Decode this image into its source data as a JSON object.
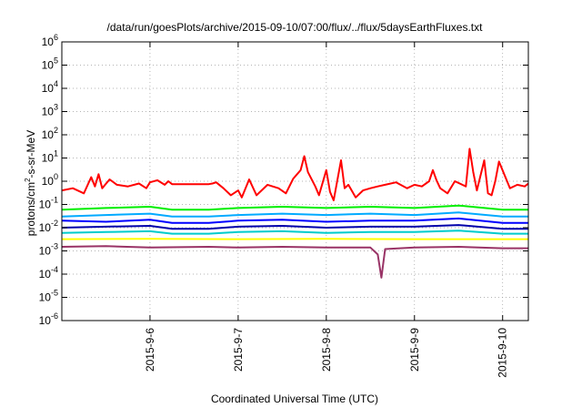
{
  "chart_data": {
    "type": "line",
    "title": "/data/run/goesPlots/archive/2015-09-10/07:00/flux/../flux/5daysEarthFluxes.txt",
    "xlabel": "Coordinated Universal Time (UTC)",
    "ylabel_parts": {
      "pre": "protons/cm",
      "sup": "2",
      "post": "-s-sr-MeV"
    },
    "yscale": "log",
    "ylim": [
      1e-06,
      1000000.0
    ],
    "xlim": [
      "2015-09-05 00:00",
      "2015-09-10 07:00"
    ],
    "grid": true,
    "legend": "none",
    "y_ticks": [
      {
        "value": 1e-06,
        "base": "10",
        "exp": "-6"
      },
      {
        "value": 1e-05,
        "base": "10",
        "exp": "-5"
      },
      {
        "value": 0.0001,
        "base": "10",
        "exp": "-4"
      },
      {
        "value": 0.001,
        "base": "10",
        "exp": "-3"
      },
      {
        "value": 0.01,
        "base": "10",
        "exp": "-2"
      },
      {
        "value": 0.1,
        "base": "10",
        "exp": "-1"
      },
      {
        "value": 1,
        "base": "10",
        "exp": "0"
      },
      {
        "value": 10.0,
        "base": "10",
        "exp": "1"
      },
      {
        "value": 100.0,
        "base": "10",
        "exp": "2"
      },
      {
        "value": 1000.0,
        "base": "10",
        "exp": "3"
      },
      {
        "value": 10000.0,
        "base": "10",
        "exp": "4"
      },
      {
        "value": 100000.0,
        "base": "10",
        "exp": "5"
      },
      {
        "value": 1000000.0,
        "base": "10",
        "exp": "6"
      }
    ],
    "x_ticks": [
      {
        "value": "2015-09-06",
        "label": "2015-9-6"
      },
      {
        "value": "2015-09-07",
        "label": "2015-9-7"
      },
      {
        "value": "2015-09-08",
        "label": "2015-9-8"
      },
      {
        "value": "2015-09-09",
        "label": "2015-9-9"
      },
      {
        "value": "2015-09-10",
        "label": "2015-9-10"
      }
    ],
    "series": [
      {
        "color": "#ff0000",
        "points": [
          [
            "2015-09-05 00:00",
            0.4
          ],
          [
            "2015-09-05 03:00",
            0.5
          ],
          [
            "2015-09-05 06:00",
            0.3
          ],
          [
            "2015-09-05 08:00",
            1.5
          ],
          [
            "2015-09-05 09:00",
            0.6
          ],
          [
            "2015-09-05 10:00",
            2.0
          ],
          [
            "2015-09-05 11:00",
            0.5
          ],
          [
            "2015-09-05 13:00",
            1.2
          ],
          [
            "2015-09-05 15:00",
            0.7
          ],
          [
            "2015-09-05 18:00",
            0.6
          ],
          [
            "2015-09-05 21:00",
            0.8
          ],
          [
            "2015-09-05 23:00",
            0.5
          ],
          [
            "2015-09-06 00:00",
            0.9
          ],
          [
            "2015-09-06 02:00",
            1.1
          ],
          [
            "2015-09-06 04:00",
            0.7
          ],
          [
            "2015-09-06 05:00",
            1.0
          ],
          [
            "2015-09-06 06:00",
            0.75
          ],
          [
            "2015-09-06 16:00",
            0.75
          ],
          [
            "2015-09-06 17:00",
            0.8
          ],
          [
            "2015-09-06 18:00",
            0.9
          ],
          [
            "2015-09-06 20:00",
            0.5
          ],
          [
            "2015-09-06 22:00",
            0.25
          ],
          [
            "2015-09-07 00:00",
            0.4
          ],
          [
            "2015-09-07 01:00",
            0.2
          ],
          [
            "2015-09-07 03:00",
            1.2
          ],
          [
            "2015-09-07 05:00",
            0.25
          ],
          [
            "2015-09-07 08:00",
            0.7
          ],
          [
            "2015-09-07 11:00",
            0.5
          ],
          [
            "2015-09-07 13:00",
            0.3
          ],
          [
            "2015-09-07 15:00",
            1.3
          ],
          [
            "2015-09-07 17:00",
            3.0
          ],
          [
            "2015-09-07 18:00",
            12.0
          ],
          [
            "2015-09-07 19:00",
            2.5
          ],
          [
            "2015-09-07 21:00",
            0.6
          ],
          [
            "2015-09-07 22:00",
            0.25
          ],
          [
            "2015-09-08 00:00",
            3.0
          ],
          [
            "2015-09-08 01:00",
            0.35
          ],
          [
            "2015-09-08 02:00",
            0.15
          ],
          [
            "2015-09-08 04:00",
            8.0
          ],
          [
            "2015-09-08 05:00",
            0.5
          ],
          [
            "2015-09-08 06:00",
            0.7
          ],
          [
            "2015-09-08 08:00",
            0.2
          ],
          [
            "2015-09-08 10:00",
            0.4
          ],
          [
            "2015-09-08 12:00",
            0.5
          ],
          [
            "2015-09-08 14:00",
            0.6
          ],
          [
            "2015-09-08 16:00",
            0.7
          ],
          [
            "2015-09-08 19:00",
            0.9
          ],
          [
            "2015-09-08 22:00",
            0.5
          ],
          [
            "2015-09-09 00:00",
            0.7
          ],
          [
            "2015-09-09 02:00",
            0.6
          ],
          [
            "2015-09-09 04:00",
            1.0
          ],
          [
            "2015-09-09 05:00",
            3.0
          ],
          [
            "2015-09-09 06:00",
            1.1
          ],
          [
            "2015-09-09 07:00",
            0.5
          ],
          [
            "2015-09-09 09:00",
            0.3
          ],
          [
            "2015-09-09 11:00",
            1.0
          ],
          [
            "2015-09-09 14:00",
            0.6
          ],
          [
            "2015-09-09 15:00",
            25.0
          ],
          [
            "2015-09-09 16:00",
            2.5
          ],
          [
            "2015-09-09 17:00",
            0.4
          ],
          [
            "2015-09-09 19:00",
            8.0
          ],
          [
            "2015-09-09 20:00",
            0.3
          ],
          [
            "2015-09-09 21:00",
            0.25
          ],
          [
            "2015-09-09 22:00",
            1.0
          ],
          [
            "2015-09-09 23:00",
            7.0
          ],
          [
            "2015-09-10 01:00",
            1.2
          ],
          [
            "2015-09-10 02:00",
            0.5
          ],
          [
            "2015-09-10 04:00",
            0.7
          ],
          [
            "2015-09-10 06:00",
            0.6
          ],
          [
            "2015-09-10 07:00",
            0.8
          ]
        ]
      },
      {
        "color": "#00ee00",
        "points": [
          [
            "2015-09-05 00:00",
            0.06
          ],
          [
            "2015-09-05 12:00",
            0.07
          ],
          [
            "2015-09-06 00:00",
            0.08
          ],
          [
            "2015-09-06 06:00",
            0.06
          ],
          [
            "2015-09-06 16:00",
            0.06
          ],
          [
            "2015-09-07 00:00",
            0.07
          ],
          [
            "2015-09-07 12:00",
            0.08
          ],
          [
            "2015-09-08 00:00",
            0.07
          ],
          [
            "2015-09-08 12:00",
            0.08
          ],
          [
            "2015-09-09 00:00",
            0.07
          ],
          [
            "2015-09-09 12:00",
            0.09
          ],
          [
            "2015-09-10 00:00",
            0.06
          ],
          [
            "2015-09-10 07:00",
            0.06
          ]
        ]
      },
      {
        "color": "#00aaff",
        "points": [
          [
            "2015-09-05 00:00",
            0.03
          ],
          [
            "2015-09-05 12:00",
            0.035
          ],
          [
            "2015-09-06 00:00",
            0.04
          ],
          [
            "2015-09-06 06:00",
            0.03
          ],
          [
            "2015-09-06 16:00",
            0.03
          ],
          [
            "2015-09-07 00:00",
            0.035
          ],
          [
            "2015-09-07 12:00",
            0.04
          ],
          [
            "2015-09-08 00:00",
            0.035
          ],
          [
            "2015-09-08 12:00",
            0.04
          ],
          [
            "2015-09-09 00:00",
            0.035
          ],
          [
            "2015-09-09 12:00",
            0.045
          ],
          [
            "2015-09-10 00:00",
            0.03
          ],
          [
            "2015-09-10 07:00",
            0.03
          ]
        ]
      },
      {
        "color": "#0000ff",
        "points": [
          [
            "2015-09-05 00:00",
            0.02
          ],
          [
            "2015-09-05 12:00",
            0.018
          ],
          [
            "2015-09-06 00:00",
            0.022
          ],
          [
            "2015-09-06 06:00",
            0.016
          ],
          [
            "2015-09-06 16:00",
            0.016
          ],
          [
            "2015-09-07 00:00",
            0.02
          ],
          [
            "2015-09-07 12:00",
            0.022
          ],
          [
            "2015-09-08 00:00",
            0.018
          ],
          [
            "2015-09-08 12:00",
            0.02
          ],
          [
            "2015-09-09 00:00",
            0.02
          ],
          [
            "2015-09-09 12:00",
            0.025
          ],
          [
            "2015-09-10 00:00",
            0.016
          ],
          [
            "2015-09-10 07:00",
            0.016
          ]
        ]
      },
      {
        "color": "#0000aa",
        "points": [
          [
            "2015-09-05 00:00",
            0.01
          ],
          [
            "2015-09-05 12:00",
            0.011
          ],
          [
            "2015-09-06 00:00",
            0.012
          ],
          [
            "2015-09-06 06:00",
            0.009
          ],
          [
            "2015-09-06 16:00",
            0.009
          ],
          [
            "2015-09-07 00:00",
            0.011
          ],
          [
            "2015-09-07 12:00",
            0.012
          ],
          [
            "2015-09-08 00:00",
            0.01
          ],
          [
            "2015-09-08 12:00",
            0.011
          ],
          [
            "2015-09-09 00:00",
            0.011
          ],
          [
            "2015-09-09 12:00",
            0.013
          ],
          [
            "2015-09-10 00:00",
            0.009
          ],
          [
            "2015-09-10 07:00",
            0.009
          ]
        ]
      },
      {
        "color": "#00cccc",
        "points": [
          [
            "2015-09-05 00:00",
            0.006
          ],
          [
            "2015-09-05 12:00",
            0.0065
          ],
          [
            "2015-09-06 00:00",
            0.007
          ],
          [
            "2015-09-06 06:00",
            0.0055
          ],
          [
            "2015-09-06 16:00",
            0.0055
          ],
          [
            "2015-09-07 00:00",
            0.0065
          ],
          [
            "2015-09-07 12:00",
            0.007
          ],
          [
            "2015-09-08 00:00",
            0.006
          ],
          [
            "2015-09-08 12:00",
            0.0065
          ],
          [
            "2015-09-09 00:00",
            0.0065
          ],
          [
            "2015-09-09 12:00",
            0.0075
          ],
          [
            "2015-09-10 00:00",
            0.0055
          ],
          [
            "2015-09-10 07:00",
            0.0055
          ]
        ]
      },
      {
        "color": "#ffff00",
        "points": [
          [
            "2015-09-05 00:00",
            0.0032
          ],
          [
            "2015-09-06 00:00",
            0.0033
          ],
          [
            "2015-09-07 00:00",
            0.0032
          ],
          [
            "2015-09-08 00:00",
            0.0033
          ],
          [
            "2015-09-09 00:00",
            0.0032
          ],
          [
            "2015-09-10 00:00",
            0.0032
          ],
          [
            "2015-09-10 07:00",
            0.0032
          ]
        ]
      },
      {
        "color": "#993366",
        "points": [
          [
            "2015-09-05 00:00",
            0.0015
          ],
          [
            "2015-09-05 12:00",
            0.0016
          ],
          [
            "2015-09-06 00:00",
            0.0014
          ],
          [
            "2015-09-06 16:00",
            0.0015
          ],
          [
            "2015-09-07 00:00",
            0.0014
          ],
          [
            "2015-09-07 12:00",
            0.0015
          ],
          [
            "2015-09-08 00:00",
            0.0014
          ],
          [
            "2015-09-08 12:00",
            0.0014
          ],
          [
            "2015-09-08 14:00",
            0.0007
          ],
          [
            "2015-09-08 15:00",
            7e-05
          ],
          [
            "2015-09-08 16:00",
            0.0012
          ],
          [
            "2015-09-09 00:00",
            0.0014
          ],
          [
            "2015-09-09 12:00",
            0.0015
          ],
          [
            "2015-09-10 00:00",
            0.0013
          ],
          [
            "2015-09-10 07:00",
            0.0013
          ]
        ]
      }
    ]
  }
}
